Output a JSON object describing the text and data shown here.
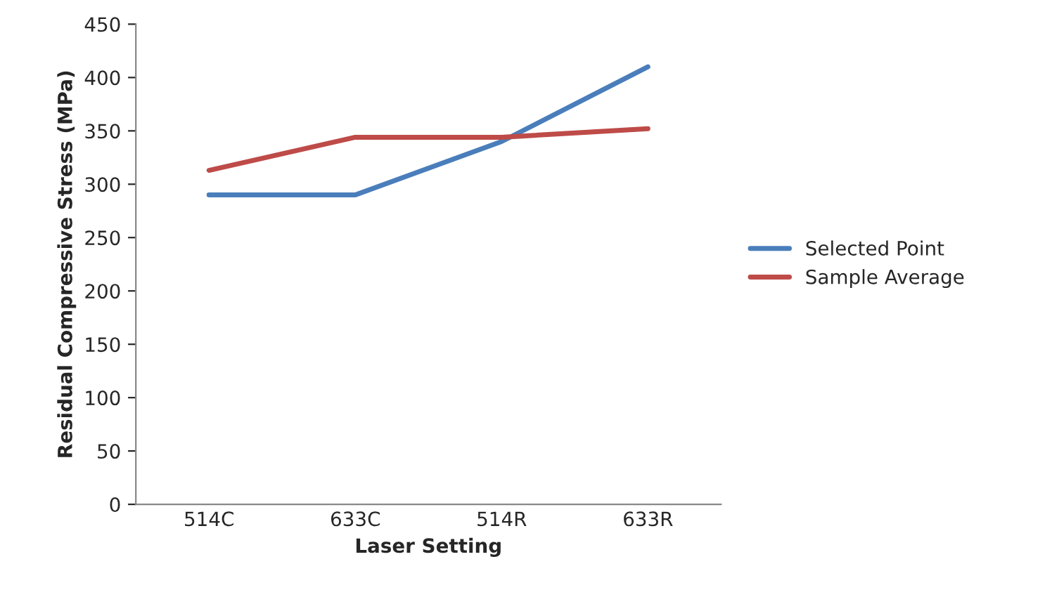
{
  "chart_data": {
    "type": "line",
    "xlabel": "Laser Setting",
    "ylabel": "Residual Compressive Stress (MPa)",
    "categories": [
      "514C",
      "633C",
      "514R",
      "633R"
    ],
    "series": [
      {
        "name": "Selected Point",
        "color": "#4a7ebb",
        "values": [
          290,
          290,
          340,
          410
        ]
      },
      {
        "name": "Sample Average",
        "color": "#be4b48",
        "values": [
          313,
          344,
          344,
          352
        ]
      }
    ],
    "ylim": [
      0,
      450
    ],
    "yticks": [
      0,
      50,
      100,
      150,
      200,
      250,
      300,
      350,
      400,
      450
    ],
    "grid": false,
    "legend": "right",
    "marker": "none",
    "line_style": "solid"
  }
}
